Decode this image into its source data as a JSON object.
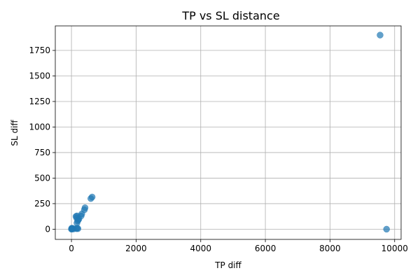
{
  "chart_data": {
    "type": "scatter",
    "title": "TP vs SL distance",
    "xlabel": "TP diff",
    "ylabel": "SL diff",
    "xlim": [
      -500,
      10200
    ],
    "ylim": [
      -100,
      1990
    ],
    "x_ticks": [
      0,
      2000,
      4000,
      6000,
      8000,
      10000
    ],
    "y_ticks": [
      0,
      250,
      500,
      750,
      1000,
      1250,
      1500,
      1750
    ],
    "grid": true,
    "legend": "none",
    "marker_color": "#1f77b4",
    "marker_alpha": 0.7,
    "points": [
      {
        "x": 0,
        "y": 0
      },
      {
        "x": 5,
        "y": 5
      },
      {
        "x": 10,
        "y": 10
      },
      {
        "x": 20,
        "y": 3
      },
      {
        "x": 40,
        "y": 8
      },
      {
        "x": 60,
        "y": 2
      },
      {
        "x": 150,
        "y": 5
      },
      {
        "x": 180,
        "y": 10
      },
      {
        "x": 200,
        "y": 5
      },
      {
        "x": 170,
        "y": 60
      },
      {
        "x": 190,
        "y": 80
      },
      {
        "x": 210,
        "y": 90
      },
      {
        "x": 230,
        "y": 100
      },
      {
        "x": 160,
        "y": 110
      },
      {
        "x": 140,
        "y": 125
      },
      {
        "x": 170,
        "y": 130
      },
      {
        "x": 300,
        "y": 130
      },
      {
        "x": 320,
        "y": 150
      },
      {
        "x": 400,
        "y": 190
      },
      {
        "x": 420,
        "y": 210
      },
      {
        "x": 600,
        "y": 300
      },
      {
        "x": 640,
        "y": 315
      },
      {
        "x": 9550,
        "y": 1900
      },
      {
        "x": 9750,
        "y": 0
      }
    ]
  }
}
